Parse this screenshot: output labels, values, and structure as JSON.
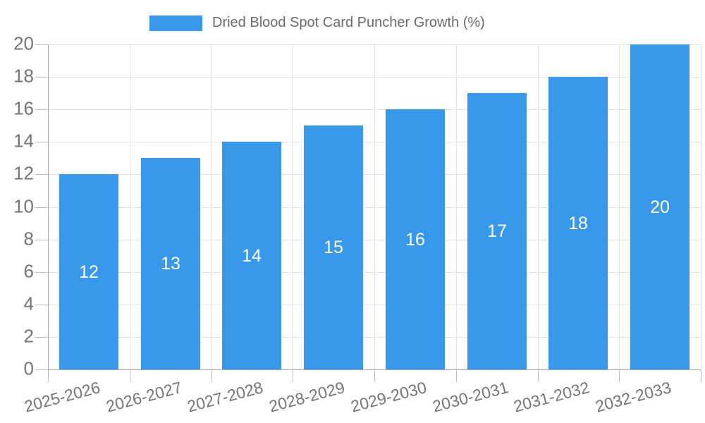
{
  "legend": {
    "label": "Dried Blood Spot Card Puncher Growth (%)",
    "position": "top"
  },
  "chart_data": {
    "type": "bar",
    "title": "",
    "series_name": "Dried Blood Spot Card Puncher Growth (%)",
    "categories": [
      "2025-2026",
      "2026-2027",
      "2027-2028",
      "2028-2029",
      "2029-2030",
      "2030-2031",
      "2031-2032",
      "2032-2033"
    ],
    "values": [
      12,
      13,
      14,
      15,
      16,
      17,
      18,
      20
    ],
    "value_labels": [
      "12",
      "13",
      "14",
      "15",
      "16",
      "17",
      "18",
      "20"
    ],
    "ylim": [
      0,
      20
    ],
    "ytick_step": 2,
    "yticks": [
      0,
      2,
      4,
      6,
      8,
      10,
      12,
      14,
      16,
      18,
      20
    ],
    "grid": "both",
    "legend_position": "top",
    "x_label_rotation_deg": -15,
    "value_labels_inside": true
  },
  "colors": {
    "bar": "#3899EC",
    "grid": "#E3E3E3",
    "axis": "#A6A6A6",
    "tick": "#BDBDBD",
    "axis_label": "#757575",
    "legend_text": "#6B6B6B",
    "bar_label": "#FFFFFF",
    "background": "#FFFFFF"
  }
}
